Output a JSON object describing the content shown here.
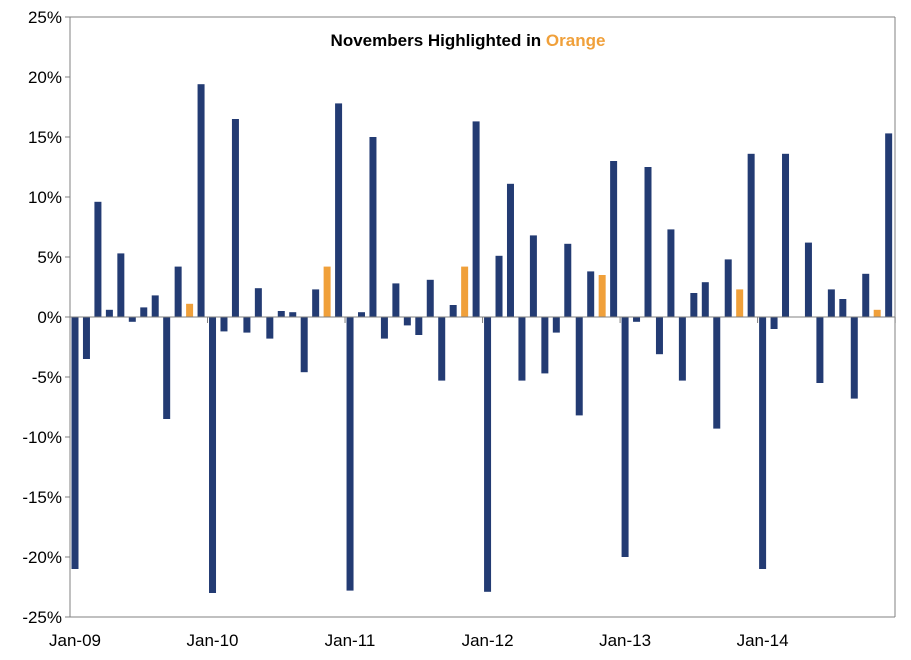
{
  "chart_data": {
    "type": "bar",
    "title_prefix": "Novembers Highlighted  in ",
    "title_highlight": "Orange",
    "xlabel": "",
    "ylabel": "",
    "ylim": [
      -25,
      25
    ],
    "y_ticks": [
      -25,
      -20,
      -15,
      -10,
      -5,
      0,
      5,
      10,
      15,
      20,
      25
    ],
    "y_tick_labels": [
      "-25%",
      "-20%",
      "-15%",
      "-10%",
      "-5%",
      "0%",
      "5%",
      "10%",
      "15%",
      "20%",
      "25%"
    ],
    "x_tick_labels": [
      "Jan-09",
      "Jan-10",
      "Jan-11",
      "Jan-12",
      "Jan-13",
      "Jan-14"
    ],
    "x_tick_indices": [
      0,
      12,
      24,
      36,
      48,
      60
    ],
    "grid": false,
    "legend": "none",
    "colors": {
      "default_bar": "#233B73",
      "november_bar": "#F0A03A",
      "highlight_text": "#F0A03A",
      "axis": "#808080",
      "title_text": "#000000"
    },
    "categories": [
      "Jan-09",
      "Feb-09",
      "Mar-09",
      "Apr-09",
      "May-09",
      "Jun-09",
      "Jul-09",
      "Aug-09",
      "Sep-09",
      "Oct-09",
      "Nov-09",
      "Dec-09",
      "Jan-10",
      "Feb-10",
      "Mar-10",
      "Apr-10",
      "May-10",
      "Jun-10",
      "Jul-10",
      "Aug-10",
      "Sep-10",
      "Oct-10",
      "Nov-10",
      "Dec-10",
      "Jan-11",
      "Feb-11",
      "Mar-11",
      "Apr-11",
      "May-11",
      "Jun-11",
      "Jul-11",
      "Aug-11",
      "Sep-11",
      "Oct-11",
      "Nov-11",
      "Dec-11",
      "Jan-12",
      "Feb-12",
      "Mar-12",
      "Apr-12",
      "May-12",
      "Jun-12",
      "Jul-12",
      "Aug-12",
      "Sep-12",
      "Oct-12",
      "Nov-12",
      "Dec-12",
      "Jan-13",
      "Feb-13",
      "Mar-13",
      "Apr-13",
      "May-13",
      "Jun-13",
      "Jul-13",
      "Aug-13",
      "Sep-13",
      "Oct-13",
      "Nov-13",
      "Dec-13",
      "Jan-14",
      "Feb-14",
      "Mar-14",
      "Apr-14",
      "May-14",
      "Jun-14",
      "Jul-14",
      "Aug-14",
      "Sep-14",
      "Oct-14",
      "Nov-14",
      "Dec-14"
    ],
    "values": [
      -21.0,
      -3.5,
      9.6,
      0.6,
      5.3,
      -0.4,
      0.8,
      1.8,
      -8.5,
      4.2,
      1.1,
      19.4,
      -23.0,
      -1.2,
      16.5,
      -1.3,
      2.4,
      -1.8,
      0.5,
      0.4,
      -4.6,
      2.3,
      4.2,
      17.8,
      -22.8,
      0.4,
      15.0,
      -1.8,
      2.8,
      -0.7,
      -1.5,
      3.1,
      -5.3,
      1.0,
      4.2,
      16.3,
      -22.9,
      5.1,
      11.1,
      -5.3,
      6.8,
      -4.7,
      -1.3,
      6.1,
      -8.2,
      3.8,
      3.5,
      13.0,
      -20.0,
      -0.4,
      12.5,
      -3.1,
      7.3,
      -5.3,
      2.0,
      2.9,
      -9.3,
      4.8,
      2.3,
      13.6,
      -21.0,
      -1.0,
      13.6,
      0.0,
      6.2,
      -5.5,
      2.3,
      1.5,
      -6.8,
      3.6,
      0.6,
      15.3
    ],
    "highlighted_indices": [
      10,
      22,
      34,
      46,
      58,
      70
    ]
  }
}
